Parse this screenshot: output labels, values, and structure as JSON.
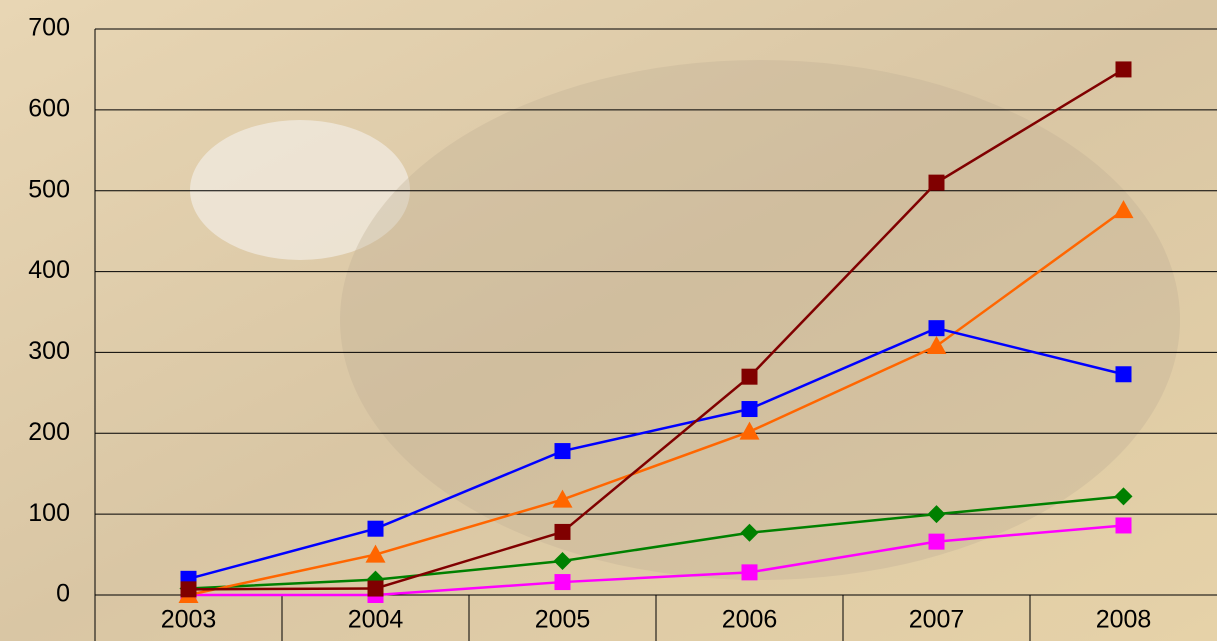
{
  "chart_data": {
    "type": "line",
    "categories": [
      "2003",
      "2004",
      "2005",
      "2006",
      "2007",
      "2008"
    ],
    "series": [
      {
        "color": "#008000",
        "marker": "diamond",
        "values": [
          8,
          19,
          42,
          77,
          100,
          122
        ]
      },
      {
        "color": "#ff00ff",
        "marker": "square",
        "values": [
          0,
          0,
          16,
          28,
          66,
          86
        ]
      },
      {
        "color": "#ff6600",
        "marker": "triangle",
        "values": [
          0,
          50,
          118,
          202,
          308,
          476
        ]
      },
      {
        "color": "#0000ff",
        "marker": "square",
        "values": [
          20,
          82,
          178,
          230,
          330,
          273
        ]
      },
      {
        "color": "#800000",
        "marker": "square",
        "values": [
          7,
          8,
          78,
          270,
          510,
          650
        ]
      }
    ],
    "ylim": [
      0,
      700
    ],
    "yticks": [
      0,
      100,
      200,
      300,
      400,
      500,
      600,
      700
    ],
    "grid": true
  }
}
